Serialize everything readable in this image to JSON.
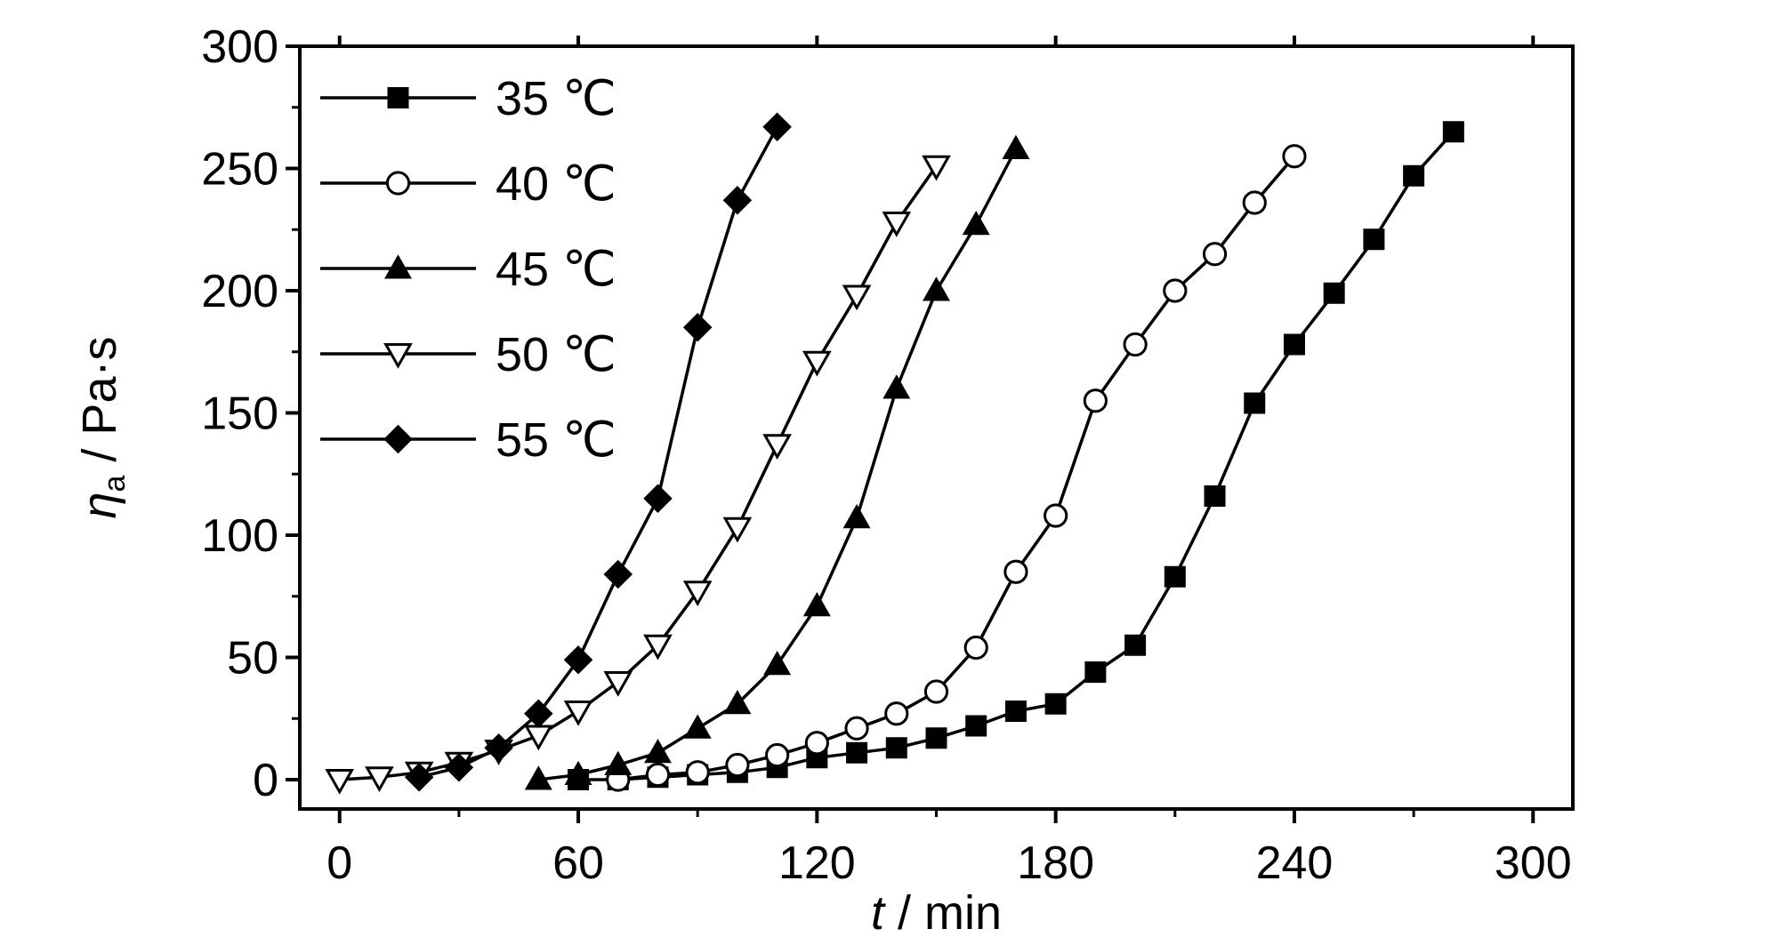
{
  "chart_data": {
    "type": "line",
    "xlabel": {
      "var": "t",
      "unit": " / min"
    },
    "ylabel": {
      "var": "η",
      "sub": "a",
      "unit": " / Pa·s"
    },
    "xlim": [
      -10,
      310
    ],
    "ylim": [
      -12,
      300
    ],
    "xticks": [
      0,
      60,
      120,
      180,
      240,
      300
    ],
    "yticks": [
      0,
      50,
      100,
      150,
      200,
      250,
      300
    ],
    "grid": false,
    "legend_position": "top-left",
    "series": [
      {
        "name": "35 ℃",
        "marker": "square-filled",
        "color": "#000000",
        "x": [
          60,
          70,
          80,
          90,
          100,
          110,
          120,
          130,
          140,
          150,
          160,
          170,
          180,
          190,
          200,
          210,
          220,
          230,
          240,
          250,
          260,
          270,
          280
        ],
        "y": [
          0,
          0,
          1,
          2,
          3,
          5,
          9,
          11,
          13,
          17,
          22,
          28,
          31,
          44,
          55,
          83,
          116,
          154,
          178,
          199,
          221,
          247,
          265
        ]
      },
      {
        "name": "40 ℃",
        "marker": "circle-open",
        "color": "#000000",
        "x": [
          70,
          80,
          90,
          100,
          110,
          120,
          130,
          140,
          150,
          160,
          170,
          180,
          190,
          200,
          210,
          220,
          230,
          240
        ],
        "y": [
          0,
          2,
          3,
          6,
          10,
          15,
          21,
          27,
          36,
          54,
          85,
          108,
          155,
          178,
          200,
          215,
          236,
          255
        ]
      },
      {
        "name": "45 ℃",
        "marker": "triangle-up-filled",
        "color": "#000000",
        "x": [
          50,
          60,
          70,
          80,
          90,
          100,
          110,
          120,
          130,
          140,
          150,
          160,
          170
        ],
        "y": [
          0,
          2,
          6,
          11,
          21,
          31,
          47,
          71,
          107,
          160,
          200,
          227,
          258
        ]
      },
      {
        "name": "50 ℃",
        "marker": "triangle-down-open",
        "color": "#000000",
        "x": [
          0,
          10,
          20,
          30,
          40,
          50,
          60,
          70,
          80,
          90,
          100,
          110,
          120,
          130,
          140,
          150
        ],
        "y": [
          0,
          1,
          3,
          7,
          12,
          18,
          28,
          40,
          55,
          77,
          103,
          137,
          171,
          198,
          228,
          251
        ]
      },
      {
        "name": "55 ℃",
        "marker": "diamond-filled",
        "color": "#000000",
        "x": [
          20,
          30,
          40,
          50,
          60,
          70,
          80,
          90,
          100,
          110
        ],
        "y": [
          1,
          5,
          13,
          27,
          49,
          84,
          115,
          185,
          237,
          267
        ]
      }
    ]
  }
}
